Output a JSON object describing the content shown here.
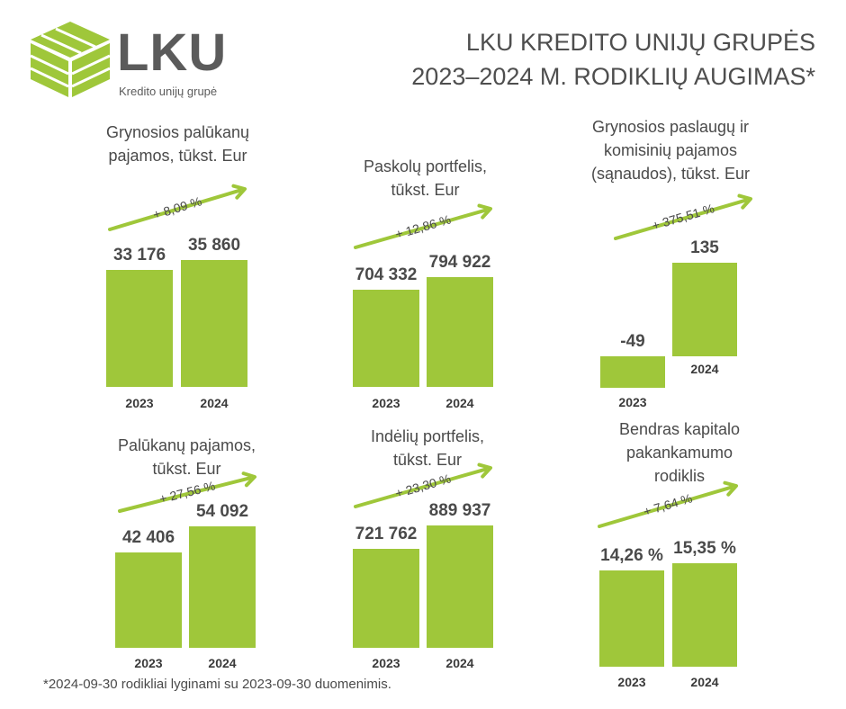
{
  "brand": {
    "name": "LKU",
    "subtitle": "Kredito unijų grupė",
    "accent": "#9fc73a"
  },
  "title": {
    "line1": "LKU KREDITO UNIJŲ GRUPĖS",
    "line2": "2023–2024 M. RODIKLIŲ AUGIMAS*"
  },
  "footnote": "*2024-09-30 rodikliai lyginami su 2023-09-30 duomenimis.",
  "chart_data": [
    {
      "type": "bar",
      "title": "Grynosios palūkanų pajamos, tūkst. Eur",
      "categories": [
        "2023",
        "2024"
      ],
      "values": [
        33176,
        35860
      ],
      "value_labels": [
        "33 176",
        "35 860"
      ],
      "growth": "+ 8,09 %"
    },
    {
      "type": "bar",
      "title": "Paskolų portfelis, tūkst. Eur",
      "categories": [
        "2023",
        "2024"
      ],
      "values": [
        704332,
        794922
      ],
      "value_labels": [
        "704 332",
        "794 922"
      ],
      "growth": "+ 12,86 %"
    },
    {
      "type": "bar",
      "title": "Grynosios paslaugų ir komisinių pajamos (sąnaudos), tūkst. Eur",
      "categories": [
        "2023",
        "2024"
      ],
      "values": [
        -49,
        135
      ],
      "value_labels": [
        "-49",
        "135"
      ],
      "growth": "+ 375,51 %"
    },
    {
      "type": "bar",
      "title": "Palūkanų pajamos, tūkst. Eur",
      "categories": [
        "2023",
        "2024"
      ],
      "values": [
        42406,
        54092
      ],
      "value_labels": [
        "42 406",
        "54 092"
      ],
      "growth": "+ 27,56 %"
    },
    {
      "type": "bar",
      "title": "Indėlių portfelis, tūkst. Eur",
      "categories": [
        "2023",
        "2024"
      ],
      "values": [
        721762,
        889937
      ],
      "value_labels": [
        "721 762",
        "889 937"
      ],
      "growth": "+ 23,30 %"
    },
    {
      "type": "bar",
      "title": "Bendras kapitalo pakankamumo rodiklis",
      "categories": [
        "2023",
        "2024"
      ],
      "values": [
        14.26,
        15.35
      ],
      "value_labels": [
        "14,26 %",
        "15,35 %"
      ],
      "growth": "+ 7,64 %"
    }
  ]
}
